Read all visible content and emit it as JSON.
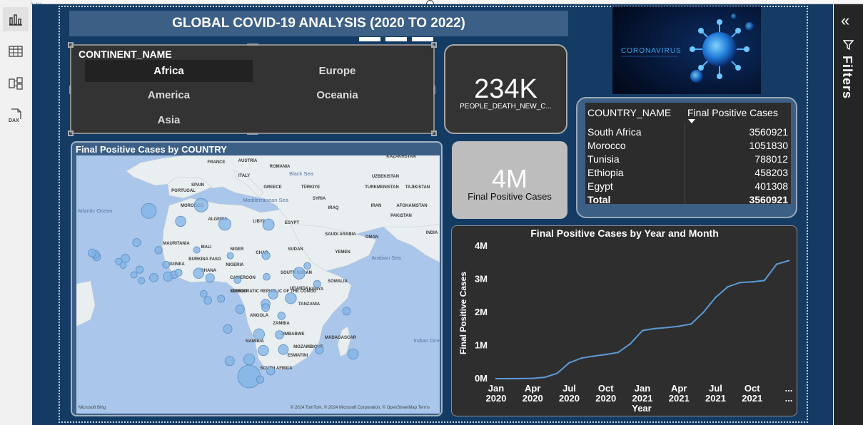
{
  "page": {
    "title": "GLOBAL COVID-19 ANALYSIS (2020 TO 2022)",
    "partial_header": "(‿) ... ... ..."
  },
  "filters_pane": {
    "label": "Filters"
  },
  "slicer": {
    "header": "CONTINENT_NAME",
    "items": [
      "Africa",
      "Europe",
      "America",
      "Oceania",
      "Asia"
    ],
    "selected": "Africa"
  },
  "card_deaths": {
    "value": "234K",
    "label": "PEOPLE_DEATH_NEW_C..."
  },
  "card_cases": {
    "value": "4M",
    "label": "Final Positive Cases"
  },
  "image": {
    "caption": "CORONAVIRUS"
  },
  "table": {
    "columns": [
      "COUNTRY_NAME",
      "Final Positive Cases"
    ],
    "rows": [
      [
        "South Africa",
        "3560921"
      ],
      [
        "Morocco",
        "1051830"
      ],
      [
        "Tunisia",
        "788012"
      ],
      [
        "Ethiopia",
        "458203"
      ],
      [
        "Egypt",
        "401308"
      ]
    ],
    "total": [
      "Total",
      "3560921"
    ]
  },
  "map": {
    "title": "Final Positive Cases by COUNTRY",
    "attribution_left": "Microsoft Bing",
    "attribution_right": "© 2024 TomTom, © 2024 Microsoft Corporation, © OpenStreetMap  Terms",
    "labels": [
      "KAZAKHSTAN",
      "FRANCE",
      "AUSTRIA",
      "ROMANIA",
      "ITALY",
      "Black Sea",
      "UZBEKISTAN",
      "SPAIN",
      "GREECE",
      "TÜRKIYE",
      "TURKMENISTAN",
      "TAJIKISTAN",
      "PORTUGAL",
      "Atlantic Ocean",
      "MOROCCO",
      "Mediterranean Sea",
      "SYRIA",
      "IRAQ",
      "IRAN",
      "AFGHANISTAN",
      "PAKISTAN",
      "ALGERIA",
      "LIBYA",
      "EGYPT",
      "SAUDI ARABIA",
      "OMAN",
      "INDIA",
      "MAURITANIA",
      "MALI",
      "NIGER",
      "CHAD",
      "SUDAN",
      "YEMEN",
      "Arabian Sea",
      "BURKINA FASO",
      "GUINEA",
      "NIGERIA",
      "GHANA",
      "SOUTH SUDAN",
      "CAMEROON",
      "SOMALIA",
      "GABON",
      "DEMOCRATIC REPUBLIC OF THE CONGO",
      "UGANDA",
      "KENYA",
      "TANZANIA",
      "ANGOLA",
      "ZAMBIA",
      "ZIMBABWE",
      "MADAGASCAR",
      "Indian Ocean",
      "NAMIBIA",
      "MOZAMBIQUE",
      "ESWATINI",
      "SOUTH AFRICA"
    ]
  },
  "line_chart": {
    "title": "Final Positive Cases by Year and Month",
    "ylabel": "Final Positive Cases",
    "xlabel": "Year",
    "ytick_labels": [
      "0M",
      "1M",
      "2M",
      "3M",
      "4M"
    ],
    "xtick_labels": [
      [
        "Jan",
        "2020"
      ],
      [
        "Apr",
        "2020"
      ],
      [
        "Jul",
        "2020"
      ],
      [
        "Oct",
        "2020"
      ],
      [
        "Jan",
        "2021"
      ],
      [
        "Apr",
        "2021"
      ],
      [
        "Jul",
        "2021"
      ],
      [
        "Oct",
        "2021"
      ],
      [
        "...",
        "..."
      ]
    ]
  },
  "chart_data": {
    "type": "line",
    "title": "Final Positive Cases by Year and Month",
    "xlabel": "Year",
    "ylabel": "Final Positive Cases",
    "ylim": [
      0,
      4000000
    ],
    "x": [
      "Jan 2020",
      "Feb 2020",
      "Mar 2020",
      "Apr 2020",
      "May 2020",
      "Jun 2020",
      "Jul 2020",
      "Aug 2020",
      "Sep 2020",
      "Oct 2020",
      "Nov 2020",
      "Dec 2020",
      "Jan 2021",
      "Feb 2021",
      "Mar 2021",
      "Apr 2021",
      "May 2021",
      "Jun 2021",
      "Jul 2021",
      "Aug 2021",
      "Sep 2021",
      "Oct 2021",
      "Nov 2021",
      "Dec 2021",
      "Jan 2022"
    ],
    "series": [
      {
        "values": [
          0,
          0,
          2000,
          8000,
          40000,
          160000,
          480000,
          620000,
          680000,
          730000,
          790000,
          1050000,
          1450000,
          1510000,
          1540000,
          1580000,
          1650000,
          2000000,
          2450000,
          2770000,
          2900000,
          2920000,
          2960000,
          3450000,
          3560000
        ]
      }
    ],
    "grid": false,
    "color": "#5b9bd5"
  },
  "map_bubbles": [
    [
      -7.1,
      31.8,
      1051830
    ],
    [
      9.5,
      33.9,
      788012
    ],
    [
      30.8,
      26.8,
      401308
    ],
    [
      40.5,
      9.1,
      458203
    ],
    [
      24.7,
      -28.5,
      3560921
    ],
    [
      3,
      28,
      270000
    ],
    [
      17,
      27,
      500000
    ],
    [
      -10.9,
      20.3,
      63000
    ],
    [
      -4,
      17.5,
      33000
    ],
    [
      8.1,
      17.6,
      9000
    ],
    [
      18.7,
      15.5,
      7800
    ],
    [
      30,
      15.6,
      63000
    ],
    [
      -1.6,
      12.2,
      22000
    ],
    [
      -14.5,
      14.5,
      88000
    ],
    [
      -16.6,
      13.4,
      12000
    ],
    [
      -15.2,
      12,
      8600
    ],
    [
      -10,
      10.4,
      38000
    ],
    [
      -11.8,
      8.5,
      7800
    ],
    [
      -9.4,
      6.4,
      8000
    ],
    [
      -5.5,
      7.5,
      87000
    ],
    [
      -1.0,
      7.9,
      170000
    ],
    [
      1,
      8.6,
      39000
    ],
    [
      2.3,
      9.3,
      28000
    ],
    [
      8.7,
      9.1,
      266000
    ],
    [
      12.3,
      7.4,
      124000
    ],
    [
      30.2,
      7.8,
      18000
    ],
    [
      32.3,
      1.4,
      170000
    ],
    [
      37.9,
      0.0,
      340000
    ],
    [
      46.2,
      5.2,
      27000
    ],
    [
      43.1,
      11.8,
      16000
    ],
    [
      21,
      6.6,
      15000
    ],
    [
      10.3,
      1.6,
      17000
    ],
    [
      11.6,
      -0.8,
      49000
    ],
    [
      15.8,
      -0.2,
      25000
    ],
    [
      21.8,
      -4,
      96000
    ],
    [
      29.9,
      -2.0,
      133000
    ],
    [
      29.9,
      -3.4,
      54000
    ],
    [
      34.9,
      -6.4,
      43000
    ],
    [
      17.9,
      -11.2,
      105000
    ],
    [
      27.8,
      -13.1,
      344000
    ],
    [
      29.2,
      -19.0,
      264000
    ],
    [
      34.3,
      -13.3,
      87000
    ],
    [
      35.5,
      -18.7,
      230000
    ],
    [
      18.5,
      -22.9,
      172000
    ],
    [
      24.7,
      -22.3,
      330000
    ],
    [
      28.2,
      -29.6,
      36000
    ],
    [
      31.5,
      -26.5,
      73000
    ],
    [
      46.9,
      -18.8,
      68000
    ],
    [
      57.6,
      -20.3,
      270000
    ],
    [
      55.5,
      -4.7,
      50000
    ],
    [
      -23.6,
      15.1,
      64000
    ],
    [
      -24.0,
      16.0,
      64000
    ],
    [
      -25,
      16.5,
      64000
    ]
  ]
}
